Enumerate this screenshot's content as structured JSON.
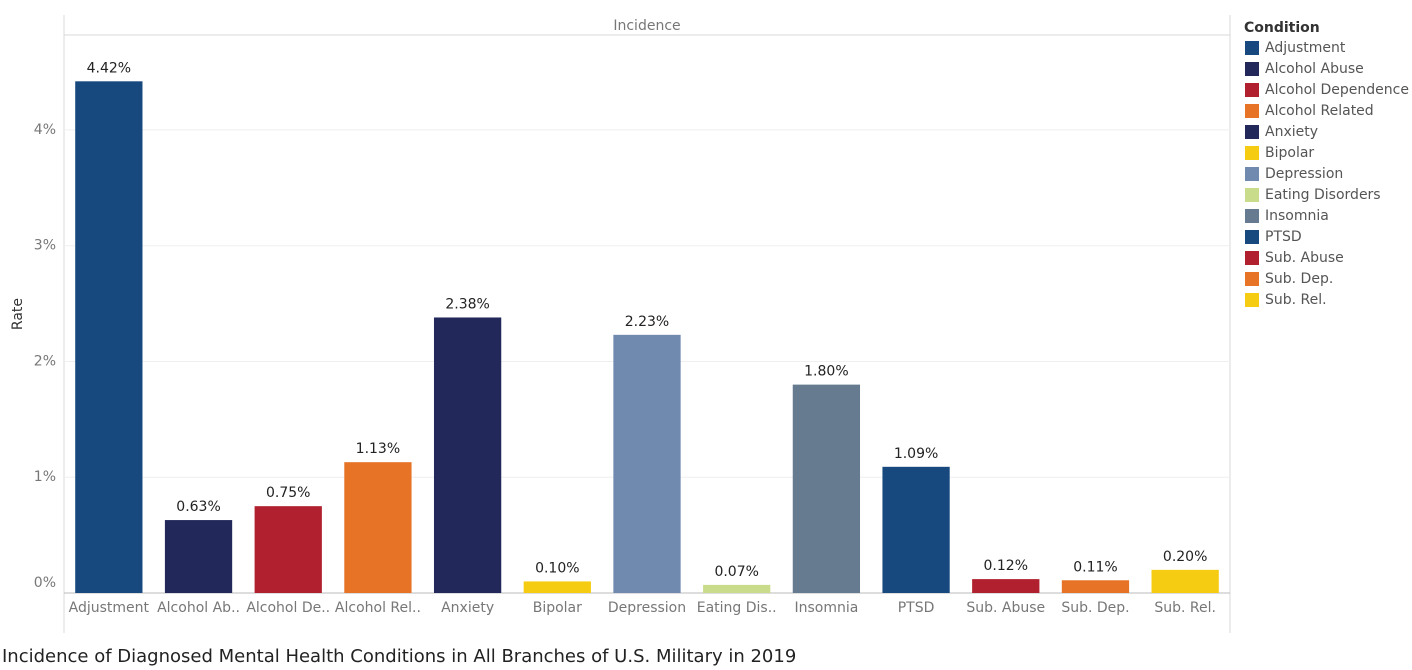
{
  "chart_data": {
    "type": "bar",
    "title": "Incidence of Diagnosed Mental Health Conditions in All Branches of U.S. Military in 2019",
    "header": "Incidence",
    "y_label": "Rate",
    "categories": [
      "Adjustment",
      "Alcohol Ab..",
      "Alcohol De..",
      "Alcohol Rel..",
      "Anxiety",
      "Bipolar",
      "Depression",
      "Eating Dis..",
      "Insomnia",
      "PTSD",
      "Sub. Abuse",
      "Sub. Dep.",
      "Sub. Rel."
    ],
    "values": [
      4.42,
      0.63,
      0.75,
      1.13,
      2.38,
      0.1,
      2.23,
      0.07,
      1.8,
      1.09,
      0.12,
      0.11,
      0.2
    ],
    "value_labels": [
      "4.42%",
      "0.63%",
      "0.75%",
      "1.13%",
      "2.38%",
      "0.10%",
      "2.23%",
      "0.07%",
      "1.80%",
      "1.09%",
      "0.12%",
      "0.11%",
      "0.20%"
    ],
    "colors": [
      "#17497f",
      "#23285a",
      "#b0202e",
      "#e67326",
      "#23285a",
      "#f5cc11",
      "#7089ae",
      "#c8dc8c",
      "#677b90",
      "#17497f",
      "#b0202e",
      "#e67326",
      "#f5cc11"
    ],
    "ylim": [
      0,
      4.82
    ],
    "yticks": [
      {
        "value": 0,
        "label": "0%"
      },
      {
        "value": 1,
        "label": "1%"
      },
      {
        "value": 2,
        "label": "2%"
      },
      {
        "value": 3,
        "label": "3%"
      },
      {
        "value": 4,
        "label": "4%"
      }
    ],
    "grid": true,
    "legend": {
      "title": "Condition",
      "position": "right",
      "items": [
        {
          "name": "Adjustment",
          "color": "#17497f"
        },
        {
          "name": "Alcohol Abuse",
          "color": "#23285a"
        },
        {
          "name": "Alcohol Dependence",
          "color": "#b0202e"
        },
        {
          "name": "Alcohol Related",
          "color": "#e67326"
        },
        {
          "name": "Anxiety",
          "color": "#23285a"
        },
        {
          "name": "Bipolar",
          "color": "#f5cc11"
        },
        {
          "name": "Depression",
          "color": "#7089ae"
        },
        {
          "name": "Eating Disorders",
          "color": "#c8dc8c"
        },
        {
          "name": "Insomnia",
          "color": "#677b90"
        },
        {
          "name": "PTSD",
          "color": "#17497f"
        },
        {
          "name": "Sub. Abuse",
          "color": "#b0202e"
        },
        {
          "name": "Sub. Dep.",
          "color": "#e67326"
        },
        {
          "name": "Sub. Rel.",
          "color": "#f5cc11"
        }
      ]
    }
  }
}
